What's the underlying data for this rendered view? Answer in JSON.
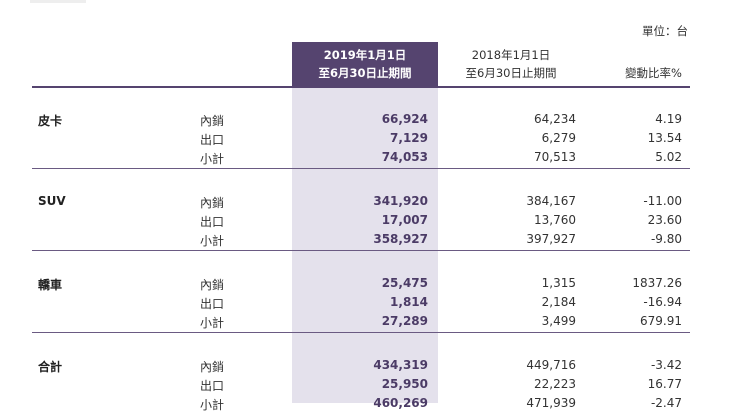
{
  "unit_label": "單位：台",
  "headers": {
    "col1_line1": "2019年1月1日",
    "col1_line2": "至6月30日止期間",
    "col2_line1": "2018年1月1日",
    "col2_line2": "至6月30日止期間",
    "col3": "變動比率%"
  },
  "groups": [
    {
      "name": "皮卡",
      "rows": [
        {
          "label": "內銷",
          "v2019": "66,924",
          "v2018": "64,234",
          "change": "4.19"
        },
        {
          "label": "出口",
          "v2019": "7,129",
          "v2018": "6,279",
          "change": "13.54"
        },
        {
          "label": "小計",
          "v2019": "74,053",
          "v2018": "70,513",
          "change": "5.02"
        }
      ]
    },
    {
      "name": "SUV",
      "rows": [
        {
          "label": "內銷",
          "v2019": "341,920",
          "v2018": "384,167",
          "change": "-11.00"
        },
        {
          "label": "出口",
          "v2019": "17,007",
          "v2018": "13,760",
          "change": "23.60"
        },
        {
          "label": "小計",
          "v2019": "358,927",
          "v2018": "397,927",
          "change": "-9.80"
        }
      ]
    },
    {
      "name": "轎車",
      "rows": [
        {
          "label": "內銷",
          "v2019": "25,475",
          "v2018": "1,315",
          "change": "1837.26"
        },
        {
          "label": "出口",
          "v2019": "1,814",
          "v2018": "2,184",
          "change": "-16.94"
        },
        {
          "label": "小計",
          "v2019": "27,289",
          "v2018": "3,499",
          "change": "679.91"
        }
      ]
    },
    {
      "name": "合計",
      "rows": [
        {
          "label": "內銷",
          "v2019": "434,319",
          "v2018": "449,716",
          "change": "-3.42"
        },
        {
          "label": "出口",
          "v2019": "25,950",
          "v2018": "22,223",
          "change": "16.77"
        },
        {
          "label": "小計",
          "v2019": "460,269",
          "v2018": "471,939",
          "change": "-2.47"
        }
      ]
    }
  ]
}
